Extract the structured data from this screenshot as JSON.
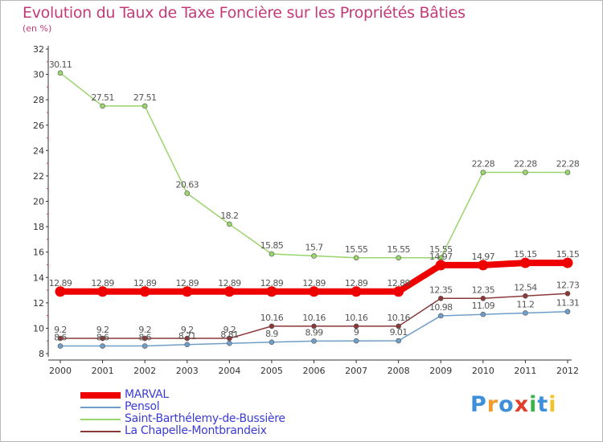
{
  "header": {
    "title": "Evolution du Taux de Taxe Foncière sur les Propriétés Bâties",
    "subtitle": "(en %)"
  },
  "brand": {
    "logo_text": "Proxiti",
    "letter_colors": [
      "#3c8fd8",
      "#f29a2b",
      "#3c8fd8",
      "#e23c2a",
      "#3cb34a",
      "#3c8fd8",
      "#f2c12b"
    ]
  },
  "chart_data": {
    "type": "line",
    "title": "Evolution du Taux de Taxe Foncière sur les Propriétés Bâties",
    "ylabel": "(en %)",
    "xlabel": "",
    "x": [
      "2000",
      "2001",
      "2002",
      "2003",
      "2004",
      "2005",
      "2006",
      "2007",
      "2008",
      "2009",
      "2010",
      "2011",
      "2012"
    ],
    "ylim": [
      8,
      32
    ],
    "yticks": [
      "8",
      "10",
      "12",
      "14",
      "16",
      "18",
      "20",
      "22",
      "24",
      "26",
      "28",
      "30",
      "32"
    ],
    "grid": false,
    "legend_position": "bottom-left",
    "series": [
      {
        "name": "MARVAL",
        "color": "#ee0000",
        "values": [
          12.89,
          12.89,
          12.89,
          12.89,
          12.89,
          12.89,
          12.89,
          12.89,
          12.89,
          14.97,
          14.97,
          15.15,
          15.15
        ],
        "labels": [
          "12.89",
          "12.89",
          "12.89",
          "12.89",
          "12.89",
          "12.89",
          "12.89",
          "12.89",
          "12.89",
          "14.97",
          "14.97",
          "15.15",
          "15.15"
        ]
      },
      {
        "name": "Pensol",
        "color": "#6f9ec8",
        "values": [
          8.6,
          8.6,
          8.6,
          8.71,
          8.81,
          8.9,
          8.99,
          9,
          9.01,
          10.98,
          11.09,
          11.2,
          11.31
        ],
        "labels": [
          "8.6",
          "8.6",
          "8.6",
          "8.71",
          "8.81",
          "8.9",
          "8.99",
          "9",
          "9.01",
          "10.98",
          "11.09",
          "11.2",
          "11.31"
        ]
      },
      {
        "name": "Saint-Barthélemy-de-Bussière",
        "color": "#99d46c",
        "values": [
          30.11,
          27.51,
          27.51,
          20.63,
          18.2,
          15.85,
          15.7,
          15.55,
          15.55,
          15.55,
          22.28,
          22.28,
          22.28
        ],
        "labels": [
          "30.11",
          "27.51",
          "27.51",
          "20.63",
          "18.2",
          "15.85",
          "15.7",
          "15.55",
          "15.55",
          "15.55",
          "22.28",
          "22.28",
          "22.28"
        ]
      },
      {
        "name": "La Chapelle-Montbrandeix",
        "color": "#8c3838",
        "values": [
          9.2,
          9.2,
          9.2,
          9.2,
          9.2,
          10.16,
          10.16,
          10.16,
          10.16,
          12.35,
          12.35,
          12.54,
          12.73
        ],
        "labels": [
          "9.2",
          "9.2",
          "9.2",
          "9.2",
          "9.2",
          "10.16",
          "10.16",
          "10.16",
          "10.16",
          "12.35",
          "12.35",
          "12.54",
          "12.73"
        ]
      }
    ]
  }
}
